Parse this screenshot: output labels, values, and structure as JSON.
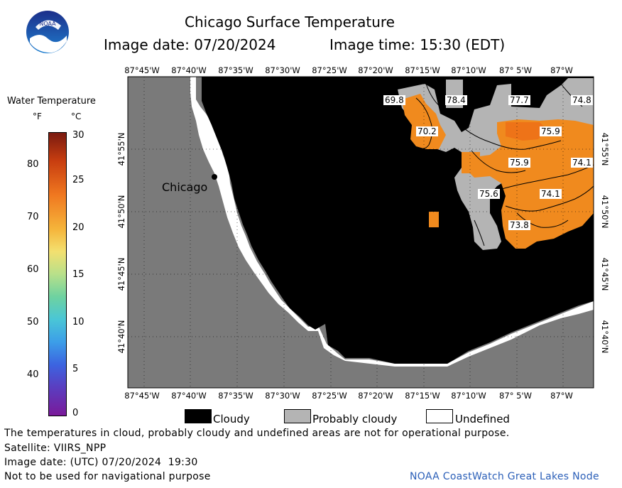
{
  "title": "Chicago Surface Temperature",
  "image_date_label": "Image date: 07/20/2024",
  "image_time_label": "Image time: 15:30 (EDT)",
  "logo": {
    "name": "noaa-logo",
    "text": "NOAA"
  },
  "colorbar": {
    "title": "Water Temperature",
    "unit_f": "°F",
    "unit_c": "°C",
    "f_ticks": [
      "80",
      "70",
      "60",
      "50",
      "40"
    ],
    "c_ticks": [
      "30",
      "25",
      "20",
      "15",
      "10",
      "5",
      "0"
    ]
  },
  "map": {
    "lon_labels": [
      "87°45'W",
      "87°40'W",
      "87°35'W",
      "87°30'W",
      "87°25'W",
      "87°20'W",
      "87°15'W",
      "87°10'W",
      "87° 5'W",
      "87°W"
    ],
    "lat_labels": [
      "41°55'N",
      "41°50'N",
      "41°45'N",
      "41°40'N"
    ],
    "city_label": "Chicago",
    "temperature_labels": [
      "69.8",
      "78.4",
      "77.7",
      "74.8",
      "70.2",
      "75.9",
      "75.9",
      "74.1",
      "75.6",
      "74.1",
      "73.8"
    ],
    "colors": {
      "land": "#7a7a7a",
      "cloud": "#000000",
      "probably_cloudy": "#b4b4b4",
      "undefined": "#ffffff",
      "water_warm": "#f08a1e",
      "water_hot": "#ee7318"
    }
  },
  "legend": {
    "cloudy": "Cloudy",
    "probably_cloudy": "Probably cloudy",
    "undefined": "Undefined"
  },
  "footer": {
    "disclaimer": "The temperatures in cloud, probably cloudy and undefined areas are not for operational purpose.",
    "satellite": "Satellite: VIIRS_NPP",
    "utc_date": "Image date: (UTC) 07/20/2024  19:30",
    "navigation": "Not to be used for navigational purpose",
    "credit": "NOAA CoastWatch Great Lakes Node"
  }
}
